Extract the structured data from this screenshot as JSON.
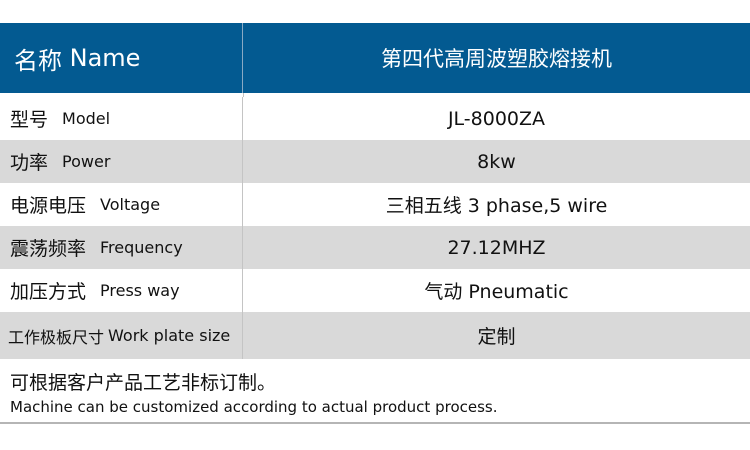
{
  "header": {
    "label_cn": "名称",
    "label_en": "Name",
    "value": "第四代高周波塑胶熔接机"
  },
  "rows": [
    {
      "cn": "型号",
      "en": "Model",
      "value": "JL-8000ZA"
    },
    {
      "cn": "功率",
      "en": "Power",
      "value": "8kw"
    },
    {
      "cn": "电源电压",
      "en": "Voltage",
      "value": "三相五线 3 phase,5 wire"
    },
    {
      "cn": "震荡频率",
      "en": "Frequency",
      "value": "27.12MHZ"
    },
    {
      "cn": "加压方式",
      "en": "Press way",
      "value": "气动 Pneumatic"
    },
    {
      "cn": "工作极板尺寸",
      "en": "Work plate size",
      "value": "定制"
    }
  ],
  "note": {
    "cn": "可根据客户产品工艺非标订制。",
    "en": "Machine can be customized according to actual product process."
  },
  "colors": {
    "header_bg": "#035a91",
    "alt_row": "#d9d9d9"
  }
}
